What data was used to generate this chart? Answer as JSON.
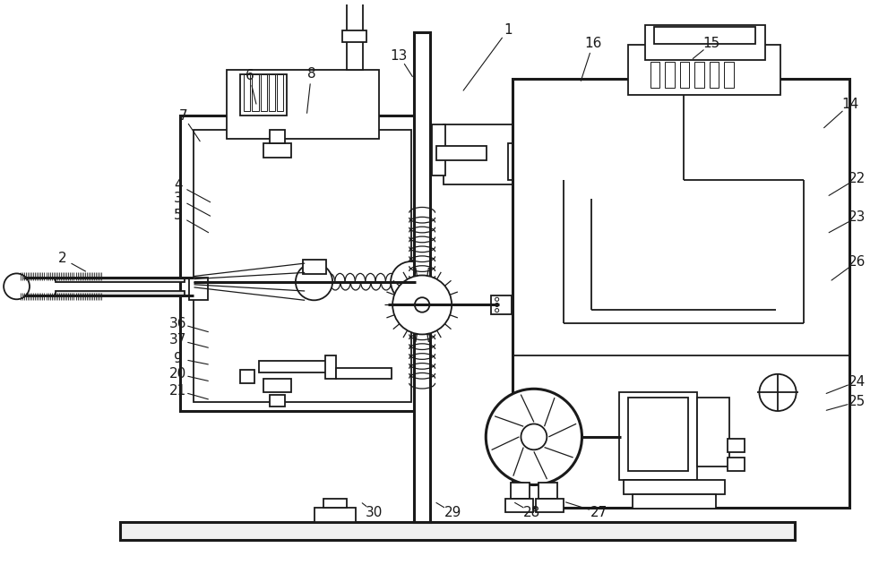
{
  "bg_color": "#ffffff",
  "line_color": "#1a1a1a",
  "lw": 1.3,
  "lw_thick": 2.2,
  "lw_thin": 0.8
}
